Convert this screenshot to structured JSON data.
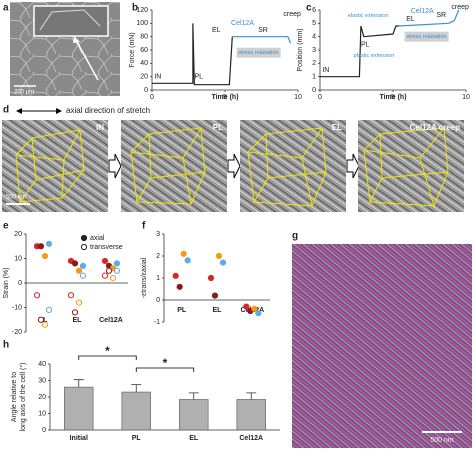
{
  "chart_data": [
    {
      "panel": "b",
      "type": "line",
      "ylabel": "Force (mN)",
      "xlabel": "Time (h)",
      "xlim": [
        0,
        10
      ],
      "xticks": [
        0,
        5,
        10
      ],
      "ylim": [
        0,
        120
      ],
      "yticks": [
        0,
        20,
        40,
        60,
        80,
        100,
        120
      ],
      "series": [
        {
          "color": "#222222",
          "x": [
            0,
            2.8,
            2.8,
            2.9,
            5.3,
            5.5
          ],
          "values": [
            10,
            10,
            100,
            8,
            8,
            80
          ]
        },
        {
          "color": "#3a8fd0",
          "x": [
            5.5,
            8.3,
            9.3,
            9.5
          ],
          "values": [
            80,
            80,
            80,
            70
          ]
        }
      ],
      "annotations": [
        "IN",
        "PL",
        "EL",
        "Cel12A",
        "SR",
        "creep",
        "stress relaxation"
      ]
    },
    {
      "panel": "c",
      "type": "line",
      "ylabel": "Position (mm)",
      "xlabel": "Time (h)",
      "xlim": [
        0,
        10
      ],
      "xticks": [
        0,
        5,
        10
      ],
      "ylim": [
        0,
        6
      ],
      "yticks": [
        0,
        1,
        2,
        3,
        4,
        5,
        6
      ],
      "series": [
        {
          "color": "#222222",
          "x": [
            0,
            2.7,
            2.8,
            3,
            5,
            5.2,
            5.4
          ],
          "values": [
            1,
            1,
            4.8,
            4,
            4.2,
            4.8,
            4.8
          ]
        },
        {
          "color": "#3a8fd0",
          "x": [
            5.4,
            8.8,
            9.2,
            9.5
          ],
          "values": [
            4.8,
            5,
            5.2,
            6
          ]
        }
      ],
      "annotations": [
        "IN",
        "PL",
        "EL",
        "Cel12A",
        "SR",
        "creep",
        "elastic extension",
        "plastic extension",
        "stress relaxation"
      ]
    },
    {
      "panel": "e",
      "type": "scatter",
      "ylabel": "Strain (%)",
      "categories": [
        "PL",
        "EL",
        "Cel12A"
      ],
      "ylim": [
        -20,
        20
      ],
      "yticks": [
        -20,
        -10,
        0,
        10,
        20
      ],
      "legend": "upper right",
      "colors": [
        "#d62828",
        "#8b1a1a",
        "#f39c12",
        "#5dade2"
      ],
      "series": [
        {
          "name": "axial",
          "filled": true,
          "values": [
            [
              15,
              9,
              9
            ],
            [
              15,
              8,
              7
            ],
            [
              11,
              5,
              6
            ],
            [
              16,
              7,
              8
            ]
          ]
        },
        {
          "name": "transverse",
          "filled": false,
          "values": [
            [
              -5,
              -5,
              3
            ],
            [
              -15,
              -12,
              5
            ],
            [
              -17,
              -8,
              2
            ],
            [
              -11,
              3,
              5
            ]
          ]
        }
      ]
    },
    {
      "panel": "f",
      "type": "scatter",
      "ylabel": "-εtrans/εaxial",
      "categories": [
        "PL",
        "EL",
        "Cel12A"
      ],
      "ylim": [
        -1,
        3
      ],
      "yticks": [
        -1,
        0,
        1,
        2,
        3
      ],
      "colors": [
        "#d62828",
        "#8b1a1a",
        "#f39c12",
        "#5dade2"
      ],
      "series": [
        {
          "filled": true,
          "values": [
            [
              1.1,
              1,
              -0.3
            ],
            [
              0.6,
              0.2,
              -0.5
            ],
            [
              2.1,
              2,
              -0.4
            ],
            [
              1.8,
              1.7,
              -0.6
            ]
          ]
        }
      ]
    },
    {
      "panel": "h",
      "type": "bar",
      "ylabel": [
        "Angle relative to",
        "long axis of the cell (°)"
      ],
      "categories": [
        "Initial",
        "PL",
        "EL",
        "Cel12A"
      ],
      "values": [
        26,
        23,
        18.5,
        18.5
      ],
      "errors": [
        4.5,
        4.5,
        4,
        4
      ],
      "ylim": [
        0,
        40
      ],
      "yticks": [
        0,
        10,
        20,
        30,
        40
      ],
      "color": "#b0b0b0",
      "significance": [
        "*",
        "*"
      ]
    }
  ],
  "images": [
    {
      "panel": "a",
      "scale": "200 μm"
    },
    {
      "panel": "d",
      "arrow_text": "axial direction of stretch",
      "scale": "500 nm",
      "frames": [
        "IN",
        "PL",
        "EL",
        "Cel12A creep"
      ]
    },
    {
      "panel": "g",
      "scale": "500 nm"
    }
  ]
}
